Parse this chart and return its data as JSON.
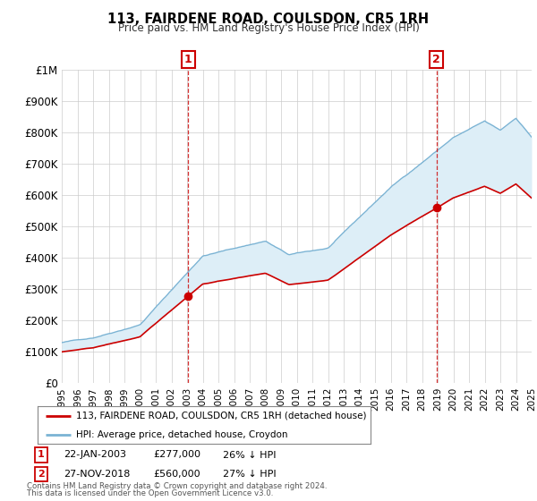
{
  "title": "113, FAIRDENE ROAD, COULSDON, CR5 1RH",
  "subtitle": "Price paid vs. HM Land Registry's House Price Index (HPI)",
  "legend_line1": "113, FAIRDENE ROAD, COULSDON, CR5 1RH (detached house)",
  "legend_line2": "HPI: Average price, detached house, Croydon",
  "footnote1": "Contains HM Land Registry data © Crown copyright and database right 2024.",
  "footnote2": "This data is licensed under the Open Government Licence v3.0.",
  "annotation1_label": "1",
  "annotation1_date": "22-JAN-2003",
  "annotation1_price": "£277,000",
  "annotation1_hpi": "26% ↓ HPI",
  "annotation2_label": "2",
  "annotation2_date": "27-NOV-2018",
  "annotation2_price": "£560,000",
  "annotation2_hpi": "27% ↓ HPI",
  "sale1_year": 2003.06,
  "sale1_value": 277000,
  "sale2_year": 2018.92,
  "sale2_value": 560000,
  "hpi_color": "#7ab3d4",
  "fill_color": "#ddeef7",
  "price_color": "#cc0000",
  "background_color": "#ffffff",
  "plot_bg_color": "#ffffff",
  "grid_color": "#cccccc",
  "ylim_min": 0,
  "ylim_max": 1000000,
  "xlim_min": 1995,
  "xlim_max": 2025,
  "yticks": [
    0,
    100000,
    200000,
    300000,
    400000,
    500000,
    600000,
    700000,
    800000,
    900000,
    1000000
  ],
  "ytick_labels": [
    "£0",
    "£100K",
    "£200K",
    "£300K",
    "£400K",
    "£500K",
    "£600K",
    "£700K",
    "£800K",
    "£900K",
    "£1M"
  ],
  "xticks": [
    1995,
    1996,
    1997,
    1998,
    1999,
    2000,
    2001,
    2002,
    2003,
    2004,
    2005,
    2006,
    2007,
    2008,
    2009,
    2010,
    2011,
    2012,
    2013,
    2014,
    2015,
    2016,
    2017,
    2018,
    2019,
    2020,
    2021,
    2022,
    2023,
    2024,
    2025
  ]
}
